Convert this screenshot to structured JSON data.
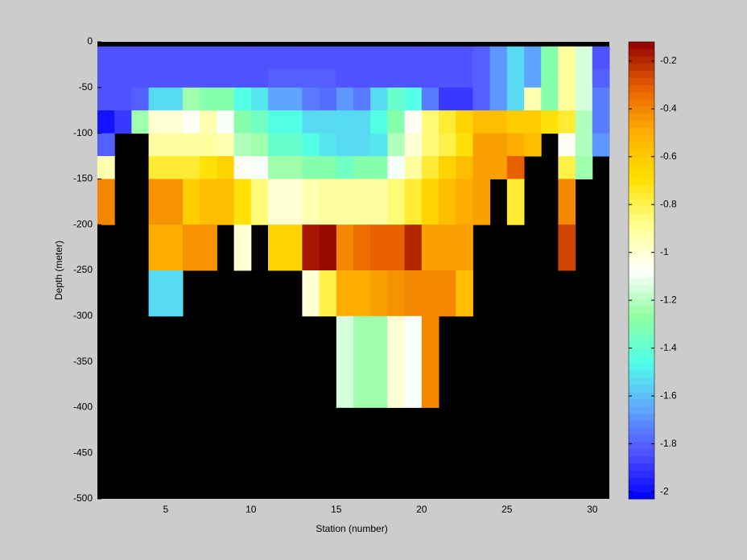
{
  "chart_data": {
    "type": "heatmap",
    "xlabel": "Station (number)",
    "ylabel": "Depth (meter)",
    "x_edges": [
      1,
      2,
      3,
      4,
      5,
      6,
      7,
      8,
      9,
      10,
      11,
      12,
      13,
      14,
      15,
      16,
      17,
      18,
      19,
      20,
      21,
      22,
      23,
      24,
      25,
      26,
      27,
      28,
      29,
      30,
      31
    ],
    "y_edges": [
      0,
      -5,
      -30,
      -50,
      -75,
      -100,
      -125,
      -150,
      -200,
      -250,
      -300,
      -400,
      -500
    ],
    "values": [
      [
        null,
        null,
        null,
        null,
        null,
        null,
        null,
        null,
        null,
        null,
        null,
        null,
        null,
        null,
        null,
        null,
        null,
        null,
        null,
        null,
        null,
        null,
        null,
        null,
        null,
        null,
        null,
        null,
        null,
        null
      ],
      [
        -1.85,
        -1.85,
        -1.85,
        -1.85,
        -1.85,
        -1.85,
        -1.85,
        -1.85,
        -1.85,
        -1.85,
        -1.85,
        -1.85,
        -1.85,
        -1.85,
        -1.85,
        -1.85,
        -1.85,
        -1.85,
        -1.85,
        -1.85,
        -1.85,
        -1.85,
        -1.8,
        -1.7,
        -1.55,
        -1.65,
        -1.3,
        -0.9,
        -1.15,
        -1.85
      ],
      [
        -1.85,
        -1.85,
        -1.85,
        -1.85,
        -1.85,
        -1.85,
        -1.85,
        -1.85,
        -1.85,
        -1.85,
        -1.8,
        -1.8,
        -1.8,
        -1.8,
        -1.85,
        -1.85,
        -1.85,
        -1.85,
        -1.85,
        -1.85,
        -1.85,
        -1.85,
        -1.8,
        -1.7,
        -1.55,
        -1.65,
        -1.3,
        -0.9,
        -1.15,
        -1.8
      ],
      [
        -1.85,
        -1.85,
        -1.8,
        -1.55,
        -1.55,
        -1.25,
        -1.3,
        -1.3,
        -1.45,
        -1.5,
        -1.65,
        -1.65,
        -1.75,
        -1.78,
        -1.7,
        -1.75,
        -1.55,
        -1.4,
        -1.45,
        -1.75,
        -1.9,
        -1.9,
        -1.8,
        -1.7,
        -1.55,
        -0.95,
        -1.3,
        -0.9,
        -1.15,
        -1.75
      ],
      [
        -2.0,
        -1.9,
        -1.25,
        -1.0,
        -1.0,
        -1.05,
        -0.95,
        -1.1,
        -1.3,
        -1.35,
        -1.45,
        -1.45,
        -1.55,
        -1.55,
        -1.55,
        -1.55,
        -1.45,
        -1.3,
        -1.05,
        -0.85,
        -0.75,
        -0.65,
        -0.55,
        -0.55,
        -0.6,
        -0.6,
        -0.7,
        -0.75,
        -1.2,
        -1.75
      ],
      [
        -1.8,
        null,
        null,
        -0.9,
        -0.9,
        -0.9,
        -0.9,
        -0.95,
        -1.2,
        -1.25,
        -1.4,
        -1.4,
        -1.45,
        -1.5,
        -1.55,
        -1.55,
        -1.5,
        -1.2,
        -1.0,
        -0.85,
        -0.8,
        -0.7,
        -0.45,
        -0.45,
        -0.5,
        -0.55,
        null,
        -1.05,
        -1.2,
        -1.7
      ],
      [
        -0.95,
        null,
        null,
        -0.75,
        -0.75,
        -0.75,
        -0.7,
        -0.65,
        -1.05,
        -1.1,
        -1.25,
        -1.25,
        -1.3,
        -1.3,
        -1.35,
        -1.3,
        -1.3,
        -1.1,
        -0.9,
        -0.75,
        -0.65,
        -0.55,
        -0.45,
        -0.45,
        -0.3,
        null,
        null,
        -0.8,
        -1.25,
        null
      ],
      [
        -0.4,
        null,
        null,
        -0.42,
        -0.42,
        -0.6,
        -0.55,
        -0.55,
        -0.7,
        -0.85,
        -1.0,
        -1.0,
        -0.95,
        -0.92,
        -0.92,
        -0.9,
        -0.9,
        -0.85,
        -0.75,
        -0.65,
        -0.55,
        -0.5,
        -0.45,
        null,
        -0.75,
        null,
        null,
        -0.4,
        null,
        null
      ],
      [
        null,
        null,
        null,
        -0.48,
        -0.48,
        -0.43,
        -0.43,
        null,
        -1.0,
        null,
        -0.65,
        -0.65,
        -0.15,
        -0.12,
        -0.4,
        -0.35,
        -0.3,
        -0.3,
        -0.2,
        -0.45,
        -0.45,
        -0.45,
        null,
        null,
        null,
        null,
        null,
        -0.25,
        null,
        null
      ],
      [
        null,
        null,
        null,
        -1.55,
        -1.55,
        null,
        null,
        null,
        null,
        null,
        null,
        null,
        -1.0,
        -0.8,
        -0.5,
        -0.5,
        -0.45,
        -0.42,
        -0.4,
        -0.4,
        -0.4,
        -0.55,
        null,
        null,
        null,
        null,
        null,
        null,
        null,
        null
      ],
      [
        null,
        null,
        null,
        null,
        null,
        null,
        null,
        null,
        null,
        null,
        null,
        null,
        null,
        null,
        -1.15,
        -1.25,
        -1.25,
        -1.0,
        -1.1,
        -0.4,
        null,
        null,
        null,
        null,
        null,
        null,
        null,
        null,
        null,
        null
      ],
      [
        null,
        null,
        null,
        null,
        null,
        null,
        null,
        null,
        null,
        null,
        null,
        null,
        null,
        null,
        null,
        null,
        null,
        null,
        null,
        null,
        null,
        null,
        null,
        null,
        null,
        null,
        null,
        null,
        null,
        null
      ]
    ],
    "xlim": [
      1,
      31
    ],
    "ylim": [
      -500,
      0
    ],
    "xticks": [
      5,
      10,
      15,
      20,
      25,
      30
    ],
    "yticks": [
      0,
      -50,
      -100,
      -150,
      -200,
      -250,
      -300,
      -350,
      -400,
      -450,
      -500
    ],
    "missing_color": "#000000",
    "colorbar": {
      "lim": [
        -2.03,
        -0.12
      ],
      "ticks": [
        -0.2,
        -0.4,
        -0.6,
        -0.8,
        -1,
        -1.2,
        -1.4,
        -1.6,
        -1.8,
        -2
      ],
      "colormap": [
        "#0000ff",
        "#5050ff",
        "#60a8ff",
        "#50ffe8",
        "#90ffa0",
        "#ffffff",
        "#ffff90",
        "#ffe000",
        "#ffb000",
        "#e86000",
        "#900000"
      ]
    }
  }
}
